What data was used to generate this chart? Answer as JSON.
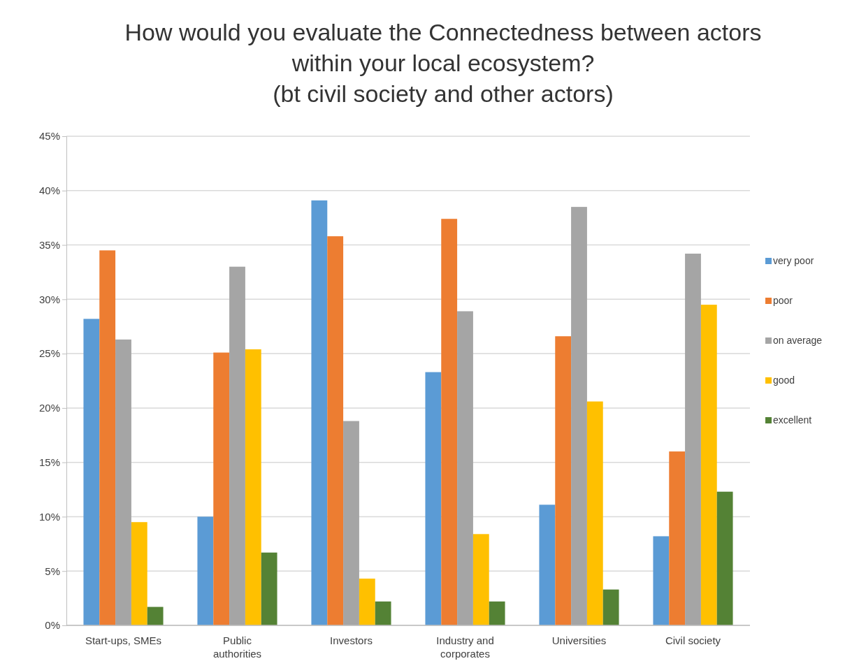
{
  "chart_data": {
    "type": "bar",
    "title": "How would you evaluate the Connectedness between actors\nwithin your local ecosystem?\n(bt civil society and other actors)",
    "categories": [
      "Start-ups, SMEs",
      "Public authorities",
      "Investors",
      "Industry and corporates",
      "Universities",
      "Civil society"
    ],
    "series": [
      {
        "name": "very poor",
        "color": "#5b9bd5",
        "values": [
          28.2,
          10.0,
          39.1,
          23.3,
          11.1,
          8.2
        ]
      },
      {
        "name": "poor",
        "color": "#ed7d31",
        "values": [
          34.5,
          25.1,
          35.8,
          37.4,
          26.6,
          16.0
        ]
      },
      {
        "name": "on average",
        "color": "#a5a5a5",
        "values": [
          26.3,
          33.0,
          18.8,
          28.9,
          38.5,
          34.2
        ]
      },
      {
        "name": "good",
        "color": "#ffc000",
        "values": [
          9.5,
          25.4,
          4.3,
          8.4,
          20.6,
          29.5
        ]
      },
      {
        "name": "excellent",
        "color": "#548235",
        "values": [
          1.7,
          6.7,
          2.2,
          2.2,
          3.3,
          12.3
        ]
      }
    ],
    "ylim": [
      0,
      45
    ],
    "yticks": [
      {
        "value": 0,
        "label": "0%"
      },
      {
        "value": 5,
        "label": "5%"
      },
      {
        "value": 10,
        "label": "10%"
      },
      {
        "value": 15,
        "label": "15%"
      },
      {
        "value": 20,
        "label": "20%"
      },
      {
        "value": 25,
        "label": "25%"
      },
      {
        "value": 30,
        "label": "30%"
      },
      {
        "value": 35,
        "label": "35%"
      },
      {
        "value": 40,
        "label": "40%"
      },
      {
        "value": 45,
        "label": "45%"
      }
    ],
    "grid": "y",
    "legend": "right"
  }
}
